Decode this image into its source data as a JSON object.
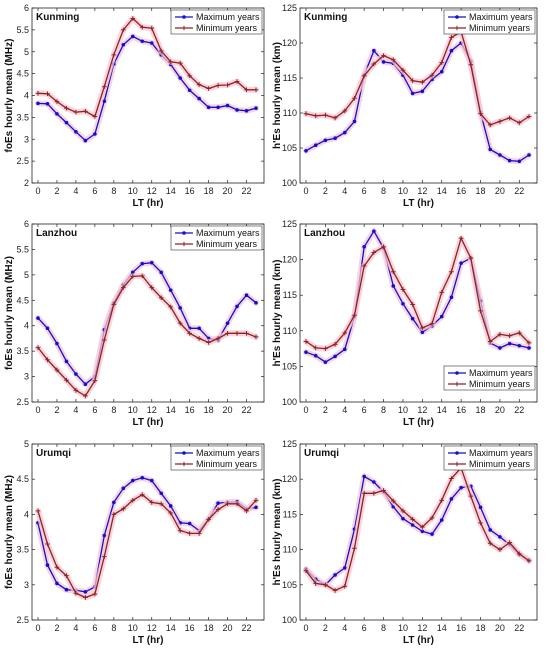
{
  "colors": {
    "max": "#1111cc",
    "min": "#8b2323",
    "band": "#f7c6d3"
  },
  "legend": {
    "max_label": "Maximum years",
    "min_label": "Minimum years"
  },
  "chart_data": [
    {
      "type": "line",
      "title": "Kunming",
      "xlabel": "LT (hr)",
      "ylabel": "foEs hourly mean (MHz)",
      "x": [
        0,
        1,
        2,
        3,
        4,
        5,
        6,
        7,
        8,
        9,
        10,
        11,
        12,
        13,
        14,
        15,
        16,
        17,
        18,
        19,
        20,
        21,
        22,
        23
      ],
      "xticks": [
        0,
        2,
        4,
        6,
        8,
        10,
        12,
        14,
        16,
        18,
        20,
        22
      ],
      "ylim": [
        2,
        6
      ],
      "yticks": [
        2,
        2.5,
        3,
        3.5,
        4,
        4.5,
        5,
        5.5,
        6
      ],
      "legend_position": "top-right",
      "series": [
        {
          "name": "Maximum years",
          "values": [
            3.82,
            3.81,
            3.58,
            3.38,
            3.17,
            2.97,
            3.12,
            3.87,
            4.72,
            5.16,
            5.35,
            5.24,
            5.2,
            4.93,
            4.71,
            4.4,
            4.12,
            3.93,
            3.73,
            3.73,
            3.77,
            3.67,
            3.65,
            3.71
          ]
        },
        {
          "name": "Minimum years",
          "values": [
            4.05,
            4.04,
            3.86,
            3.71,
            3.62,
            3.64,
            3.52,
            4.2,
            4.93,
            5.5,
            5.76,
            5.56,
            5.54,
            5.02,
            4.77,
            4.74,
            4.45,
            4.25,
            4.16,
            4.23,
            4.24,
            4.32,
            4.13,
            4.13
          ]
        }
      ]
    },
    {
      "type": "line",
      "title": "Kunming",
      "xlabel": "LT (hr)",
      "ylabel": "h'Es hourly mean (km)",
      "x": [
        0,
        1,
        2,
        3,
        4,
        5,
        6,
        7,
        8,
        9,
        10,
        11,
        12,
        13,
        14,
        15,
        16,
        17,
        18,
        19,
        20,
        21,
        22,
        23
      ],
      "xticks": [
        0,
        2,
        4,
        6,
        8,
        10,
        12,
        14,
        16,
        18,
        20,
        22
      ],
      "ylim": [
        100,
        125
      ],
      "yticks": [
        100,
        105,
        110,
        115,
        120,
        125
      ],
      "legend_position": "top-right",
      "series": [
        {
          "name": "Maximum years",
          "values": [
            104.6,
            105.4,
            106.1,
            106.4,
            107.2,
            108.8,
            115.4,
            118.9,
            117.3,
            117.1,
            115.4,
            112.8,
            113.1,
            114.8,
            115.9,
            118.9,
            120.0,
            117.4,
            110.1,
            104.8,
            104.0,
            103.2,
            103.1,
            104.0
          ]
        },
        {
          "name": "Minimum years",
          "values": [
            109.9,
            109.6,
            109.7,
            109.3,
            110.3,
            112.1,
            115.3,
            117.0,
            118.2,
            117.6,
            116.1,
            114.6,
            114.4,
            115.4,
            117.2,
            120.8,
            121.6,
            116.9,
            109.9,
            108.3,
            108.8,
            109.3,
            108.6,
            109.5
          ]
        }
      ]
    },
    {
      "type": "line",
      "title": "Lanzhou",
      "xlabel": "LT (hr)",
      "ylabel": "foEs hourly mean (MHz)",
      "x": [
        0,
        1,
        2,
        3,
        4,
        5,
        6,
        7,
        8,
        9,
        10,
        11,
        12,
        13,
        14,
        15,
        16,
        17,
        18,
        19,
        20,
        21,
        22,
        23
      ],
      "xticks": [
        0,
        2,
        4,
        6,
        8,
        10,
        12,
        14,
        16,
        18,
        20,
        22
      ],
      "ylim": [
        2.5,
        6
      ],
      "yticks": [
        2.5,
        3,
        3.5,
        4,
        4.5,
        5,
        5.5,
        6
      ],
      "legend_position": "top-right",
      "series": [
        {
          "name": "Maximum years",
          "values": [
            4.15,
            3.95,
            3.65,
            3.3,
            3.05,
            2.85,
            3.0,
            3.92,
            4.45,
            4.8,
            5.05,
            5.22,
            5.24,
            5.05,
            4.7,
            4.35,
            3.95,
            3.95,
            3.75,
            3.72,
            4.05,
            4.38,
            4.6,
            4.45
          ]
        },
        {
          "name": "Minimum years",
          "values": [
            3.57,
            3.33,
            3.13,
            2.93,
            2.73,
            2.62,
            2.92,
            3.72,
            4.42,
            4.75,
            4.97,
            4.98,
            4.75,
            4.55,
            4.37,
            4.05,
            3.85,
            3.75,
            3.67,
            3.75,
            3.85,
            3.85,
            3.85,
            3.78
          ]
        }
      ]
    },
    {
      "type": "line",
      "title": "Lanzhou",
      "xlabel": "LT (hr)",
      "ylabel": "h'Es hourly mean (km)",
      "x": [
        0,
        1,
        2,
        3,
        4,
        5,
        6,
        7,
        8,
        9,
        10,
        11,
        12,
        13,
        14,
        15,
        16,
        17,
        18,
        19,
        20,
        21,
        22,
        23
      ],
      "xticks": [
        0,
        2,
        4,
        6,
        8,
        10,
        12,
        14,
        16,
        18,
        20,
        22
      ],
      "ylim": [
        100,
        125
      ],
      "yticks": [
        100,
        105,
        110,
        115,
        120,
        125
      ],
      "legend_position": "bottom-right",
      "series": [
        {
          "name": "Maximum years",
          "values": [
            107.0,
            106.5,
            105.6,
            106.4,
            107.4,
            112.0,
            121.8,
            124.0,
            121.6,
            116.3,
            113.8,
            111.7,
            109.8,
            110.7,
            112.0,
            114.7,
            119.5,
            120.2,
            114.2,
            108.3,
            107.6,
            108.2,
            107.9,
            107.6
          ]
        },
        {
          "name": "Minimum years",
          "values": [
            108.5,
            107.6,
            107.5,
            108.1,
            109.7,
            112.2,
            119.1,
            121.0,
            121.8,
            118.3,
            115.8,
            113.7,
            110.4,
            111.0,
            115.4,
            118.3,
            123.0,
            120.2,
            112.8,
            108.5,
            109.5,
            109.3,
            109.7,
            108.3
          ]
        }
      ]
    },
    {
      "type": "line",
      "title": "Urumqi",
      "xlabel": "LT (hr)",
      "ylabel": "foEs hourly mean (MHz)",
      "x": [
        0,
        1,
        2,
        3,
        4,
        5,
        6,
        7,
        8,
        9,
        10,
        11,
        12,
        13,
        14,
        15,
        16,
        17,
        18,
        19,
        20,
        21,
        22,
        23
      ],
      "xticks": [
        0,
        2,
        4,
        6,
        8,
        10,
        12,
        14,
        16,
        18,
        20,
        22
      ],
      "ylim": [
        2.5,
        5
      ],
      "yticks": [
        2.5,
        3,
        3.5,
        4,
        4.5,
        5
      ],
      "legend_position": "top-right",
      "series": [
        {
          "name": "Maximum years",
          "values": [
            3.88,
            3.28,
            3.02,
            2.93,
            2.92,
            2.9,
            2.97,
            3.7,
            4.17,
            4.37,
            4.48,
            4.52,
            4.48,
            4.3,
            4.12,
            3.88,
            3.87,
            3.77,
            3.93,
            4.16,
            4.17,
            4.18,
            4.08,
            4.1
          ]
        },
        {
          "name": "Minimum years",
          "values": [
            4.05,
            3.58,
            3.25,
            3.13,
            2.88,
            2.82,
            2.87,
            3.4,
            4.0,
            4.08,
            4.2,
            4.28,
            4.17,
            4.15,
            4.02,
            3.77,
            3.73,
            3.73,
            3.93,
            4.07,
            4.15,
            4.15,
            4.05,
            4.2
          ]
        }
      ]
    },
    {
      "type": "line",
      "title": "Urumqi",
      "xlabel": "LT (hr)",
      "ylabel": "h'Es hourly mean (km)",
      "x": [
        0,
        1,
        2,
        3,
        4,
        5,
        6,
        7,
        8,
        9,
        10,
        11,
        12,
        13,
        14,
        15,
        16,
        17,
        18,
        19,
        20,
        21,
        22,
        23
      ],
      "xticks": [
        0,
        2,
        4,
        6,
        8,
        10,
        12,
        14,
        16,
        18,
        20,
        22
      ],
      "ylim": [
        100,
        125
      ],
      "yticks": [
        100,
        105,
        110,
        115,
        120,
        125
      ],
      "legend_position": "top-right",
      "series": [
        {
          "name": "Maximum years",
          "values": [
            107.2,
            105.8,
            105.0,
            106.4,
            107.4,
            112.9,
            120.4,
            119.6,
            118.2,
            116.1,
            114.4,
            113.5,
            112.6,
            112.2,
            114.2,
            117.2,
            118.8,
            119.0,
            116.0,
            112.8,
            111.8,
            110.7,
            109.3,
            108.5
          ]
        },
        {
          "name": "Minimum years",
          "values": [
            107.0,
            105.2,
            105.0,
            104.2,
            104.8,
            110.2,
            118.0,
            118.0,
            118.4,
            116.9,
            115.5,
            114.3,
            113.2,
            114.5,
            117.0,
            120.1,
            121.6,
            117.6,
            113.8,
            110.9,
            110.0,
            111.0,
            109.4,
            108.4
          ]
        }
      ]
    }
  ]
}
